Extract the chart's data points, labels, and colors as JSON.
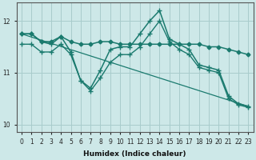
{
  "xlabel": "Humidex (Indice chaleur)",
  "ylabel": "",
  "background_color": "#cde8e8",
  "grid_color": "#a8cccc",
  "line_color": "#1a7a6e",
  "xlim": [
    -0.5,
    23.5
  ],
  "ylim": [
    9.85,
    12.35
  ],
  "yticks": [
    10,
    11,
    12
  ],
  "xticks": [
    0,
    1,
    2,
    3,
    4,
    5,
    6,
    7,
    8,
    9,
    10,
    11,
    12,
    13,
    14,
    15,
    16,
    17,
    18,
    19,
    20,
    21,
    22,
    23
  ],
  "series": [
    {
      "x": [
        0,
        1,
        2,
        3,
        4,
        5,
        6,
        7,
        8,
        9,
        10,
        11,
        12,
        13,
        14,
        15,
        16,
        17,
        18,
        19,
        20,
        21,
        22,
        23
      ],
      "y": [
        11.75,
        11.75,
        11.6,
        11.6,
        11.7,
        11.6,
        11.55,
        11.55,
        11.6,
        11.6,
        11.55,
        11.55,
        11.55,
        11.55,
        11.55,
        11.55,
        11.55,
        11.55,
        11.55,
        11.5,
        11.5,
        11.45,
        11.4,
        11.35
      ],
      "marker": "D",
      "markersize": 2.5,
      "linewidth": 1.1
    },
    {
      "x": [
        0,
        1,
        2,
        3,
        4,
        5,
        6,
        7,
        8,
        9,
        10,
        11,
        12,
        13,
        14,
        15,
        16,
        17,
        18,
        19,
        20,
        21,
        22,
        23
      ],
      "y": [
        11.75,
        11.75,
        11.6,
        11.55,
        11.7,
        11.4,
        10.85,
        10.7,
        11.05,
        11.45,
        11.5,
        11.5,
        11.75,
        12.0,
        12.2,
        11.65,
        11.55,
        11.45,
        11.15,
        11.1,
        11.05,
        10.55,
        10.4,
        10.35
      ],
      "marker": "+",
      "markersize": 5,
      "linewidth": 1.1
    },
    {
      "x": [
        0,
        1,
        2,
        3,
        4,
        5,
        6,
        7,
        8,
        9,
        10,
        11,
        12,
        13,
        14,
        15,
        16,
        17,
        18,
        19,
        20,
        21,
        22,
        23
      ],
      "y": [
        11.55,
        11.55,
        11.4,
        11.4,
        11.55,
        11.35,
        10.85,
        10.65,
        10.9,
        11.2,
        11.35,
        11.35,
        11.5,
        11.75,
        12.0,
        11.6,
        11.45,
        11.35,
        11.1,
        11.05,
        11.0,
        10.5,
        10.38,
        10.33
      ],
      "marker": "+",
      "markersize": 4,
      "linewidth": 1.0
    },
    {
      "x": [
        0,
        23
      ],
      "y": [
        11.75,
        10.35
      ],
      "marker": null,
      "markersize": 0,
      "linewidth": 0.9
    }
  ]
}
